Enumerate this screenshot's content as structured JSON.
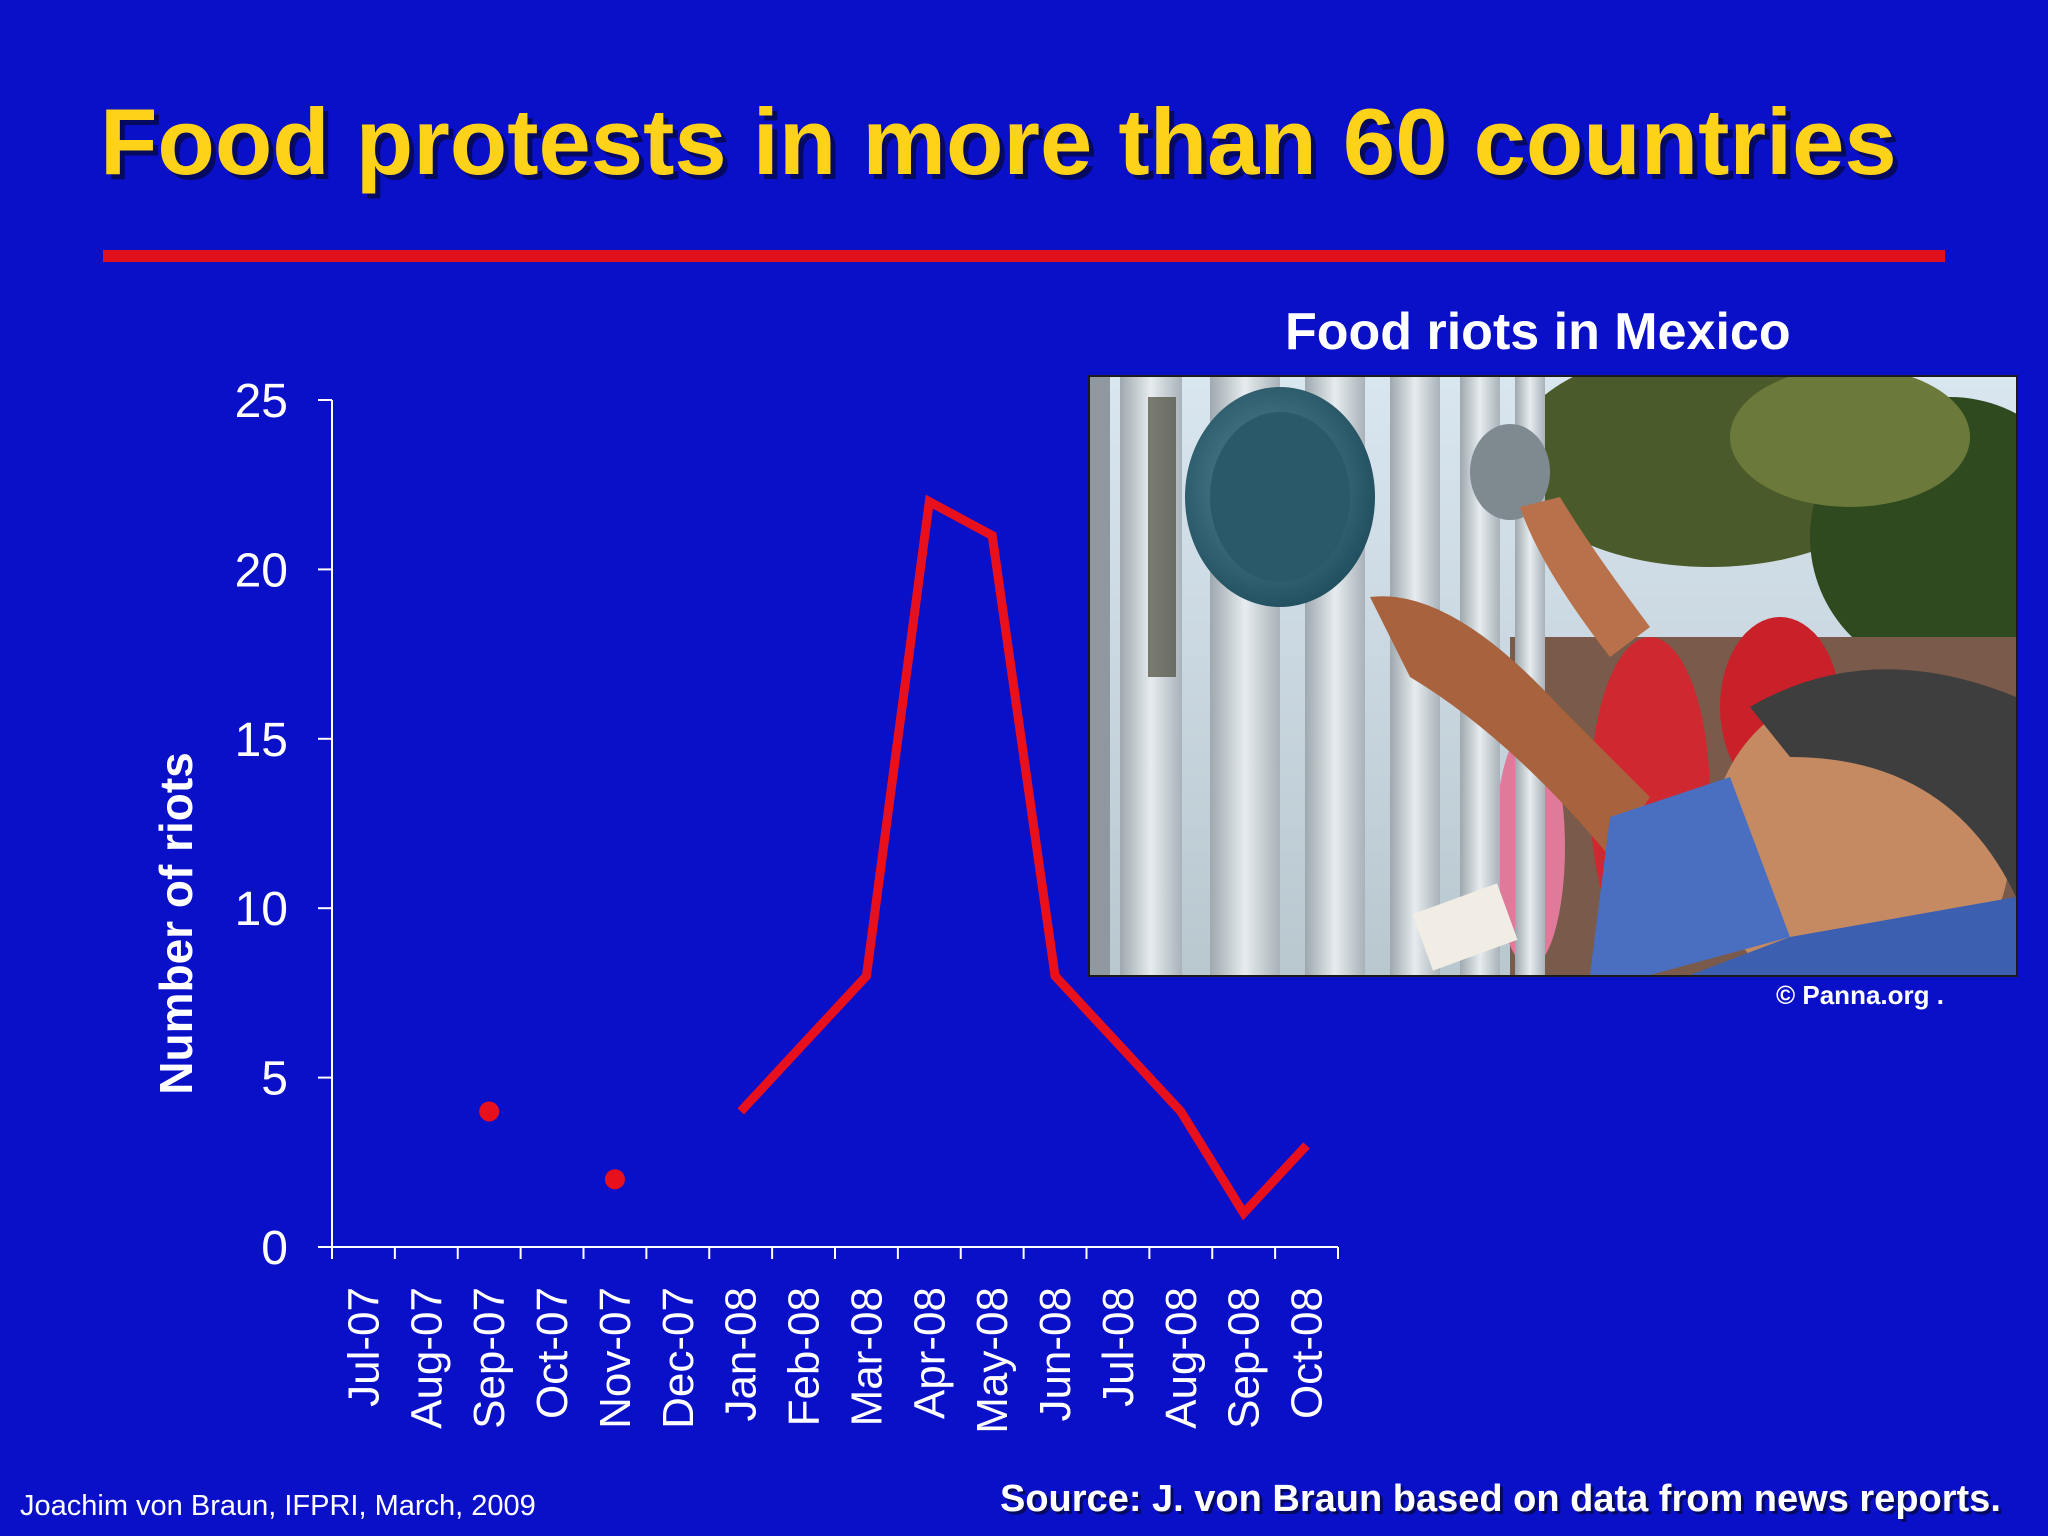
{
  "slide": {
    "title": "Food protests in more than 60 countries",
    "footer_left": "Joachim von Braun, IFPRI, March, 2009",
    "footer_right": "Source: J. von Braun based on data from news reports."
  },
  "photo": {
    "caption": "Food riots in Mexico",
    "credit": "© Panna.org ."
  },
  "colors": {
    "background": "#0A0FC8",
    "title": "#FFD21A",
    "accent": "#E8101C",
    "text": "#FFFFFF"
  },
  "chart_data": {
    "type": "line",
    "ylabel": "Number of riots",
    "ylim": [
      0,
      25
    ],
    "yticks": [
      0,
      5,
      10,
      15,
      20,
      25
    ],
    "categories": [
      "Jul-07",
      "Aug-07",
      "Sep-07",
      "Oct-07",
      "Nov-07",
      "Dec-07",
      "Jan-08",
      "Feb-08",
      "Mar-08",
      "Apr-08",
      "May-08",
      "Jun-08",
      "Jul-08",
      "Aug-08",
      "Sep-08",
      "Oct-08"
    ],
    "series": [
      {
        "values": [
          null,
          null,
          4,
          null,
          2,
          null,
          4,
          6,
          8,
          22,
          21,
          8,
          6,
          4,
          1,
          3
        ]
      }
    ],
    "grid": false,
    "legend": "none"
  }
}
